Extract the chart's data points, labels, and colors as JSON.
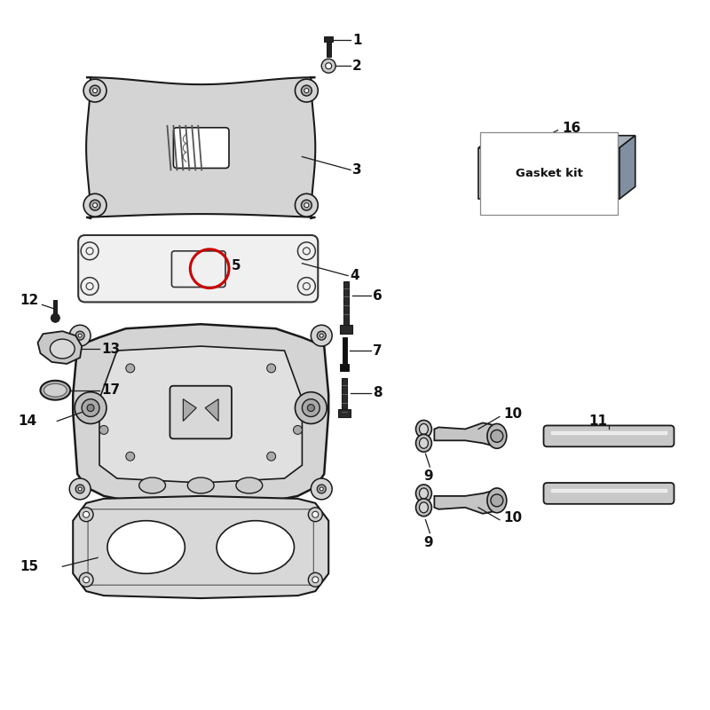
{
  "bg_color": "#ffffff",
  "line_color": "#1a1a1a",
  "fill_light": "#d4d4d4",
  "fill_mid": "#b8b8b8",
  "fill_dark": "#888888",
  "fill_white": "#ffffff",
  "red_circle": "#cc0000",
  "label_color": "#111111",
  "gasket_label": "Gasket kit",
  "gasket_fill": "#c8cfd6",
  "gasket_top": "#a8b0b8",
  "gasket_side": "#8090a0"
}
